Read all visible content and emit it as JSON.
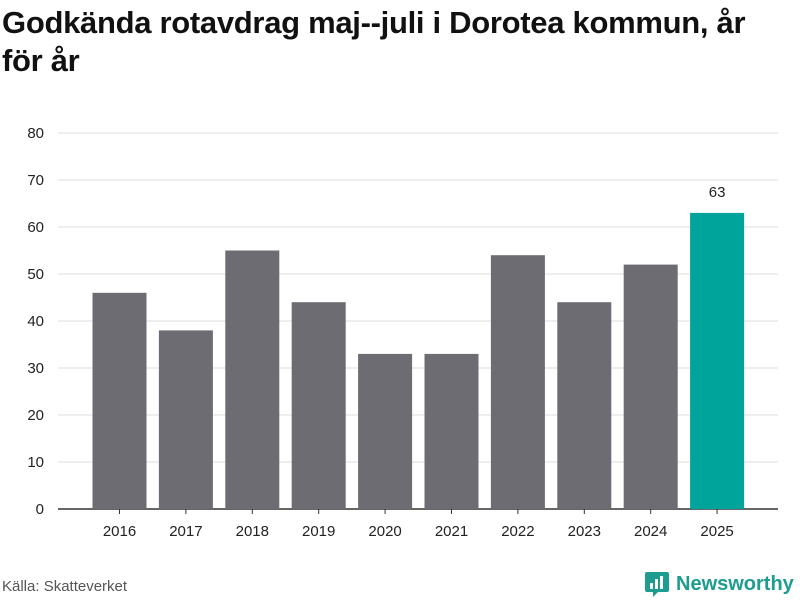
{
  "title": "Godkända rotavdrag maj--juli i Dorotea kommun, år för år",
  "source": "Källa: Skatteverket",
  "brand": {
    "name": "Newsworthy",
    "icon": "newsworthy-logo-icon",
    "color": "#1c9d8f"
  },
  "colors": {
    "bar": "#6d6c72",
    "highlight": "#00a49a",
    "grid": "#dddddd",
    "axis": "#333333"
  },
  "chart_data": {
    "type": "bar",
    "categories": [
      "2016",
      "2017",
      "2018",
      "2019",
      "2020",
      "2021",
      "2022",
      "2023",
      "2024",
      "2025"
    ],
    "values": [
      46,
      38,
      55,
      44,
      33,
      33,
      54,
      44,
      52,
      63
    ],
    "highlight_index": 9,
    "data_labels": [
      {
        "index": 9,
        "text": "63"
      }
    ],
    "title": "Godkända rotavdrag maj--juli i Dorotea kommun, år för år",
    "xlabel": "",
    "ylabel": "",
    "ylim": [
      0,
      80
    ],
    "yticks": [
      0,
      10,
      20,
      30,
      40,
      50,
      60,
      70,
      80
    ],
    "grid": true,
    "legend": "none"
  }
}
